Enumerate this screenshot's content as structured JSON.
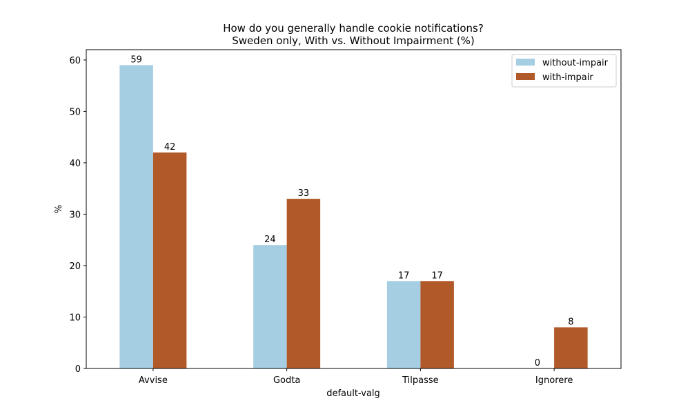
{
  "chart_data": {
    "type": "bar",
    "title": "How do you generally handle cookie notifications?",
    "subtitle": "Sweden only, With vs. Without Impairment (%)",
    "xlabel": "default-valg",
    "ylabel": "%",
    "categories": [
      "Avvise",
      "Godta",
      "Tilpasse",
      "Ignorere"
    ],
    "series": [
      {
        "name": "without-impair",
        "values": [
          59,
          24,
          17,
          0
        ],
        "color": "#a6cee3"
      },
      {
        "name": "with-impair",
        "values": [
          42,
          33,
          17,
          8
        ],
        "color": "#b15928"
      }
    ],
    "ylim": [
      0,
      62
    ],
    "yticks": [
      0,
      10,
      20,
      30,
      40,
      50,
      60
    ],
    "grid": false,
    "legend_position": "top-right"
  }
}
